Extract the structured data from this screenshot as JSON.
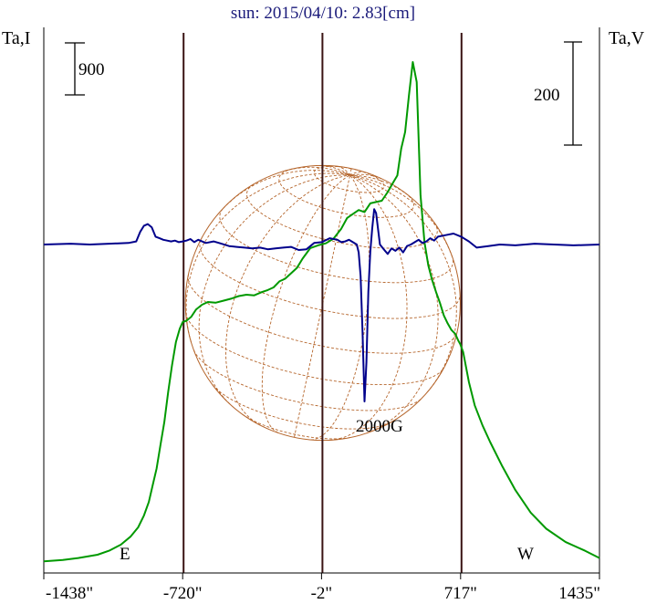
{
  "chart_data": {
    "type": "line",
    "title": "sun: 2015/04/10: 2.83[cm]",
    "left_axis_label": "Ta,I",
    "right_axis_label": "Ta,V",
    "left_scale_label": "900",
    "right_scale_label": "200",
    "x_tick_labels": [
      "-1438\"",
      "-720\"",
      "-2\"",
      "717\"",
      "1435\""
    ],
    "x_ticks": [
      -1438,
      -720,
      -2,
      717,
      1435
    ],
    "xlim": [
      -1438,
      1435
    ],
    "vertical_lines": [
      -720,
      -2,
      717
    ],
    "limb_labels": {
      "east": "E",
      "west": "W"
    },
    "annotation": "2000G",
    "solar_radius_arcsec": 720,
    "colors": {
      "title": "#1a1a7a",
      "intensity": "#009900",
      "polarization": "#00008b",
      "disk": "#b5652b",
      "vertical_lines": "#3a1414",
      "axes": "#000000"
    },
    "series": [
      {
        "key": "intensity",
        "x": [
          -1438,
          -1340,
          -1260,
          -1160,
          -1100,
          -1040,
          -990,
          -950,
          -920,
          -895,
          -875,
          -855,
          -835,
          -815,
          -795,
          -775,
          -755,
          -735,
          -720,
          -700,
          -675,
          -650,
          -620,
          -590,
          -550,
          -510,
          -470,
          -430,
          -390,
          -350,
          -310,
          -280,
          -250,
          -220,
          -190,
          -160,
          -130,
          -100,
          -60,
          -20,
          20,
          60,
          100,
          130,
          160,
          190,
          220,
          250,
          280,
          310,
          340,
          370,
          390,
          410,
          430,
          450,
          470,
          490,
          510,
          530,
          550,
          570,
          590,
          610,
          630,
          650,
          670,
          690,
          705,
          715,
          730,
          760,
          790,
          830,
          870,
          930,
          1000,
          1080,
          1160,
          1260,
          1360,
          1435
        ],
        "y": [
          10,
          30,
          60,
          110,
          170,
          260,
          380,
          520,
          700,
          900,
          1150,
          1400,
          1750,
          2100,
          2550,
          2950,
          3300,
          3500,
          3600,
          3620,
          3680,
          3790,
          3860,
          3900,
          3890,
          3920,
          3950,
          3990,
          4010,
          4000,
          4050,
          4080,
          4120,
          4210,
          4250,
          4330,
          4410,
          4550,
          4710,
          4750,
          4780,
          4850,
          5000,
          5160,
          5220,
          5280,
          5250,
          5380,
          5400,
          5420,
          5550,
          5700,
          5800,
          6200,
          6450,
          7000,
          7500,
          7200,
          5500,
          4800,
          4450,
          4230,
          4050,
          3890,
          3700,
          3580,
          3480,
          3420,
          3320,
          3270,
          3150,
          2700,
          2350,
          2050,
          1800,
          1450,
          1080,
          740,
          500,
          300,
          170,
          60
        ]
      },
      {
        "key": "polarization",
        "x": [
          -1438,
          -1300,
          -1200,
          -1100,
          -1000,
          -960,
          -940,
          -920,
          -900,
          -880,
          -860,
          -840,
          -820,
          -800,
          -780,
          -760,
          -740,
          -720,
          -700,
          -680,
          -660,
          -640,
          -600,
          -560,
          -520,
          -480,
          -440,
          -400,
          -360,
          -320,
          -280,
          -240,
          -200,
          -160,
          -120,
          -80,
          -40,
          0,
          40,
          80,
          100,
          120,
          140,
          160,
          180,
          190,
          200,
          210,
          220,
          230,
          240,
          250,
          260,
          270,
          280,
          300,
          320,
          340,
          360,
          380,
          400,
          420,
          440,
          460,
          480,
          500,
          520,
          540,
          560,
          580,
          600,
          640,
          680,
          720,
          760,
          800,
          860,
          920,
          1000,
          1100,
          1200,
          1300,
          1435
        ],
        "y": [
          0,
          1,
          0,
          1,
          2,
          4,
          16,
          24,
          26,
          22,
          10,
          8,
          6,
          5,
          4,
          5,
          3,
          4,
          5,
          7,
          3,
          6,
          2,
          4,
          1,
          -2,
          -3,
          -4,
          -5,
          -4,
          -6,
          -5,
          -4,
          -3,
          -7,
          -6,
          2,
          3,
          8,
          6,
          3,
          4,
          6,
          3,
          0,
          -10,
          -40,
          -110,
          -200,
          -150,
          -60,
          -10,
          20,
          45,
          40,
          0,
          -6,
          -12,
          -5,
          -8,
          -4,
          -10,
          -2,
          0,
          3,
          6,
          2,
          4,
          8,
          5,
          10,
          12,
          14,
          10,
          4,
          -4,
          -2,
          0,
          -1,
          1,
          0,
          -1,
          0
        ]
      }
    ]
  }
}
